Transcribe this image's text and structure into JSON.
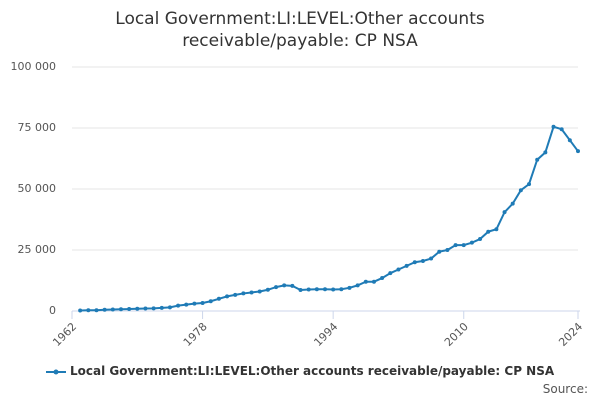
{
  "chart_data": {
    "type": "line",
    "title": "Local Government:LI:LEVEL:Other accounts receivable/payable: CP NSA",
    "x": [
      1963,
      1964,
      1965,
      1966,
      1967,
      1968,
      1969,
      1970,
      1971,
      1972,
      1973,
      1974,
      1975,
      1976,
      1977,
      1978,
      1979,
      1980,
      1981,
      1982,
      1983,
      1984,
      1985,
      1986,
      1987,
      1988,
      1989,
      1990,
      1991,
      1992,
      1993,
      1994,
      1995,
      1996,
      1997,
      1998,
      1999,
      2000,
      2001,
      2002,
      2003,
      2004,
      2005,
      2006,
      2007,
      2008,
      2009,
      2010,
      2011,
      2012,
      2013,
      2014,
      2015,
      2016,
      2017,
      2018,
      2019,
      2020,
      2021,
      2022,
      2023,
      2024
    ],
    "series": [
      {
        "name": "Local Government:LI:LEVEL:Other accounts receivable/payable: CP NSA",
        "color": "#1f7bb6",
        "values": [
          200,
          300,
          300,
          500,
          600,
          700,
          800,
          900,
          1000,
          1100,
          1300,
          1500,
          2200,
          2600,
          3000,
          3300,
          4000,
          5000,
          6000,
          6600,
          7200,
          7600,
          8000,
          8700,
          9800,
          10500,
          10300,
          8600,
          8800,
          8900,
          8900,
          8800,
          8900,
          9500,
          10500,
          12000,
          12000,
          13500,
          15500,
          17000,
          18500,
          20000,
          20500,
          21500,
          24300,
          25000,
          27000,
          27000,
          28000,
          29500,
          32500,
          33500,
          40500,
          44000,
          49500,
          52000,
          62000,
          65000,
          75500,
          74500,
          70000,
          65500
        ]
      }
    ],
    "xlim": [
      1962,
      2024
    ],
    "xticks": [
      1962,
      1978,
      1994,
      2010,
      2024
    ],
    "ylim": [
      0,
      100000
    ],
    "yticks": [
      0,
      {
        "value": 25000,
        "label": "25 000"
      },
      {
        "value": 50000,
        "label": "50 000"
      },
      {
        "value": 75000,
        "label": "75 000"
      },
      {
        "value": 100000,
        "label": "100 000"
      }
    ],
    "grid": true,
    "source": "Source:"
  }
}
